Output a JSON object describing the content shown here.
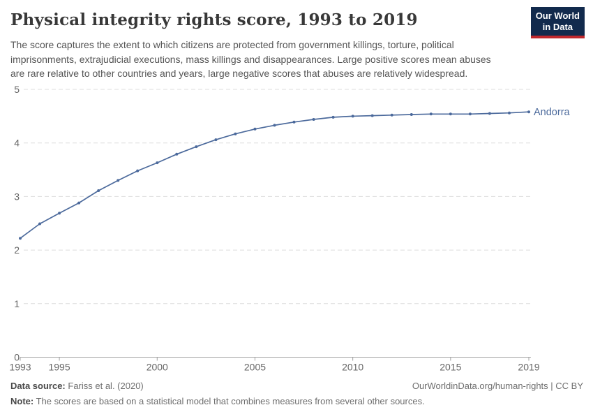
{
  "header": {
    "title": "Physical integrity rights score, 1993 to 2019",
    "subtitle_lines": [
      "The score captures the extent to which citizens are protected from government killings, torture, political",
      "imprisonments, extrajudicial executions, mass killings and disappearances. Large positive scores mean abuses",
      "are rare relative to other countries and years, large negative scores that abuses are relatively widespread."
    ],
    "logo": {
      "line1": "Our World",
      "line2": "in Data",
      "bg_color": "#122a4d",
      "stripe_color": "#c0282d"
    }
  },
  "chart_data": {
    "type": "line",
    "title": "Physical integrity rights score, 1993 to 2019",
    "xlabel": "",
    "ylabel": "",
    "xlim": [
      1993,
      2019
    ],
    "ylim": [
      0,
      5
    ],
    "xticks": [
      1993,
      1995,
      2000,
      2005,
      2010,
      2015,
      2019
    ],
    "yticks": [
      0,
      1,
      2,
      3,
      4,
      5
    ],
    "grid": "horizontal-dashed",
    "legend_position": "end-of-line-label",
    "series": [
      {
        "name": "Andorra",
        "color": "#4c6a9c",
        "x": [
          1993,
          1994,
          1995,
          1996,
          1997,
          1998,
          1999,
          2000,
          2001,
          2002,
          2003,
          2004,
          2005,
          2006,
          2007,
          2008,
          2009,
          2010,
          2011,
          2012,
          2013,
          2014,
          2015,
          2016,
          2017,
          2018,
          2019
        ],
        "values": [
          2.22,
          2.49,
          2.69,
          2.88,
          3.11,
          3.3,
          3.48,
          3.63,
          3.79,
          3.93,
          4.06,
          4.17,
          4.26,
          4.33,
          4.39,
          4.44,
          4.48,
          4.5,
          4.51,
          4.52,
          4.53,
          4.54,
          4.54,
          4.54,
          4.55,
          4.56,
          4.58
        ]
      }
    ],
    "axis_color": "#a1a1a1",
    "gridline_color": "#dcdcdc",
    "tick_label_color": "#666666"
  },
  "footer": {
    "source_label": "Data source:",
    "source_value": "Fariss et al. (2020)",
    "attribution": "OurWorldinData.org/human-rights | CC BY",
    "note_label": "Note:",
    "note_value": "The scores are based on a statistical model that combines measures from several other sources."
  }
}
